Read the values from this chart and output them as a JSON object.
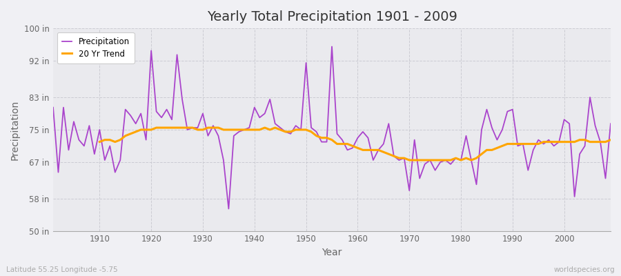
{
  "title": "Yearly Total Precipitation 1901 - 2009",
  "xlabel": "Year",
  "ylabel": "Precipitation",
  "years": [
    1901,
    1902,
    1903,
    1904,
    1905,
    1906,
    1907,
    1908,
    1909,
    1910,
    1911,
    1912,
    1913,
    1914,
    1915,
    1916,
    1917,
    1918,
    1919,
    1920,
    1921,
    1922,
    1923,
    1924,
    1925,
    1926,
    1927,
    1928,
    1929,
    1930,
    1931,
    1932,
    1933,
    1934,
    1935,
    1936,
    1937,
    1938,
    1939,
    1940,
    1941,
    1942,
    1943,
    1944,
    1945,
    1946,
    1947,
    1948,
    1949,
    1950,
    1951,
    1952,
    1953,
    1954,
    1955,
    1956,
    1957,
    1958,
    1959,
    1960,
    1961,
    1962,
    1963,
    1964,
    1965,
    1966,
    1967,
    1968,
    1969,
    1970,
    1971,
    1972,
    1973,
    1974,
    1975,
    1976,
    1977,
    1978,
    1979,
    1980,
    1981,
    1982,
    1983,
    1984,
    1985,
    1986,
    1987,
    1988,
    1989,
    1990,
    1991,
    1992,
    1993,
    1994,
    1995,
    1996,
    1997,
    1998,
    1999,
    2000,
    2001,
    2002,
    2003,
    2004,
    2005,
    2006,
    2007,
    2008,
    2009
  ],
  "precip": [
    80.5,
    64.5,
    80.5,
    70.0,
    77.0,
    72.5,
    71.0,
    76.0,
    69.0,
    75.0,
    67.5,
    71.0,
    64.5,
    67.5,
    80.0,
    78.5,
    76.5,
    79.0,
    72.5,
    94.5,
    79.5,
    78.0,
    80.0,
    77.5,
    93.5,
    82.5,
    75.0,
    75.5,
    75.5,
    79.0,
    73.5,
    76.0,
    73.5,
    67.5,
    55.5,
    73.5,
    74.5,
    75.0,
    75.5,
    80.5,
    78.0,
    79.0,
    82.5,
    76.5,
    75.5,
    74.5,
    74.0,
    76.0,
    75.0,
    91.5,
    75.5,
    74.5,
    72.0,
    72.0,
    95.5,
    74.0,
    72.5,
    70.0,
    70.5,
    73.0,
    74.5,
    73.0,
    67.5,
    70.0,
    71.5,
    76.5,
    68.5,
    67.5,
    68.0,
    60.0,
    72.5,
    63.0,
    66.5,
    67.5,
    65.0,
    67.0,
    67.5,
    66.5,
    68.0,
    67.5,
    73.5,
    67.5,
    61.5,
    75.0,
    80.0,
    75.5,
    72.5,
    75.0,
    79.5,
    80.0,
    71.0,
    71.5,
    65.0,
    70.0,
    72.5,
    71.5,
    72.5,
    71.0,
    72.0,
    77.5,
    76.5,
    58.5,
    69.0,
    71.0,
    83.0,
    76.0,
    72.0,
    63.0,
    76.5
  ],
  "trend_years": [
    1910,
    1911,
    1912,
    1913,
    1914,
    1915,
    1916,
    1917,
    1918,
    1919,
    1920,
    1921,
    1922,
    1923,
    1924,
    1925,
    1926,
    1927,
    1928,
    1929,
    1930,
    1931,
    1932,
    1933,
    1934,
    1935,
    1936,
    1937,
    1938,
    1939,
    1940,
    1941,
    1942,
    1943,
    1944,
    1945,
    1946,
    1947,
    1948,
    1949,
    1950,
    1951,
    1952,
    1953,
    1954,
    1955,
    1956,
    1957,
    1958,
    1959,
    1960,
    1961,
    1962,
    1963,
    1964,
    1965,
    1966,
    1967,
    1968,
    1969,
    1970,
    1971,
    1972,
    1973,
    1974,
    1975,
    1976,
    1977,
    1978,
    1979,
    1980,
    1981,
    1982,
    1983,
    1984,
    1985,
    1986,
    1987,
    1988,
    1989,
    1990,
    1991,
    1992,
    1993,
    1994,
    1995,
    1996,
    1997,
    1998,
    1999,
    2000,
    2001,
    2002,
    2003,
    2004,
    2005,
    2006,
    2007,
    2008,
    2009
  ],
  "trend": [
    72.0,
    72.5,
    72.5,
    72.0,
    72.5,
    73.5,
    74.0,
    74.5,
    75.0,
    75.0,
    75.0,
    75.5,
    75.5,
    75.5,
    75.5,
    75.5,
    75.5,
    75.5,
    75.5,
    75.0,
    75.0,
    75.5,
    75.5,
    75.5,
    75.0,
    75.0,
    75.0,
    75.0,
    75.0,
    75.0,
    75.0,
    75.0,
    75.5,
    75.0,
    75.5,
    75.0,
    74.5,
    74.5,
    75.0,
    75.0,
    75.0,
    74.5,
    73.5,
    73.0,
    73.0,
    72.5,
    71.5,
    71.5,
    71.5,
    71.0,
    70.5,
    70.0,
    70.0,
    70.0,
    70.0,
    69.5,
    69.0,
    68.5,
    68.0,
    68.0,
    67.5,
    67.5,
    67.5,
    67.5,
    67.5,
    67.5,
    67.5,
    67.5,
    67.5,
    68.0,
    67.5,
    68.0,
    67.5,
    68.0,
    69.0,
    70.0,
    70.0,
    70.5,
    71.0,
    71.5,
    71.5,
    71.5,
    71.5,
    71.5,
    71.5,
    71.5,
    72.0,
    72.0,
    72.0,
    72.0,
    72.0,
    72.0,
    72.0,
    72.5,
    72.5,
    72.0,
    72.0,
    72.0,
    72.0,
    72.5
  ],
  "yticks": [
    50,
    58,
    67,
    75,
    83,
    92,
    100
  ],
  "ytick_labels": [
    "50 in",
    "58 in",
    "67 in",
    "75 in",
    "83 in",
    "92 in",
    "100 in"
  ],
  "xticks": [
    1910,
    1920,
    1930,
    1940,
    1950,
    1960,
    1970,
    1980,
    1990,
    2000
  ],
  "ylim": [
    50,
    100
  ],
  "xlim": [
    1901,
    2009
  ],
  "precip_color": "#AA44CC",
  "trend_color": "#FFA500",
  "fig_bg_color": "#F0F0F4",
  "plot_bg_color": "#EAEAEE",
  "grid_color": "#C8C8D0",
  "title_color": "#333333",
  "axis_label_color": "#666666",
  "tick_label_color": "#666666",
  "subtitle_text": "Latitude 55.25 Longitude -5.75",
  "watermark": "worldspecies.org",
  "subtitle_color": "#AAAAAA",
  "watermark_color": "#AAAAAA"
}
